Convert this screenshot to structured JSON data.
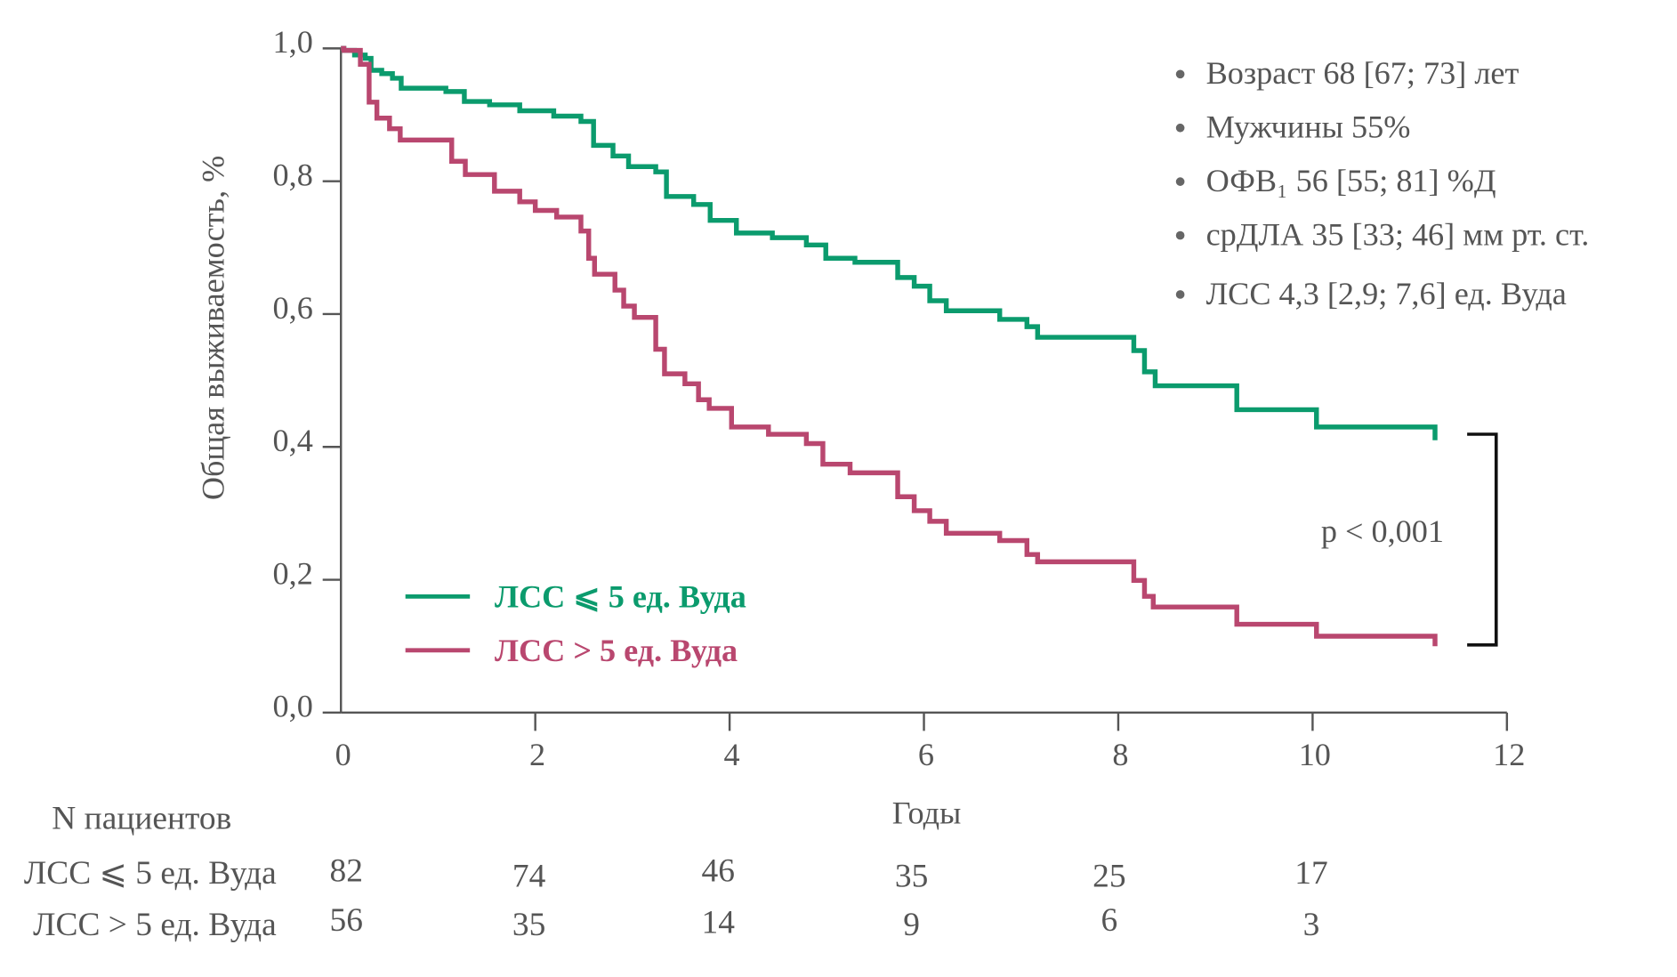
{
  "chart_data": {
    "type": "line",
    "subtype": "kaplan-meier",
    "ylabel": "Общая выживаемость, %",
    "xlabel": "Годы",
    "xlim": [
      0,
      12
    ],
    "ylim": [
      0,
      1.0
    ],
    "xticks": [
      0,
      2,
      4,
      6,
      8,
      10,
      12
    ],
    "yticks": [
      "0,0",
      "0,2",
      "0,4",
      "0,6",
      "0,8",
      "1,0"
    ],
    "ytick_values": [
      0,
      0.2,
      0.4,
      0.6,
      0.8,
      1.0
    ],
    "grid": false,
    "legend_position": "bottom-left",
    "colors": {
      "green": "#0b9b6d",
      "magenta": "#b9476f"
    },
    "series": [
      {
        "name": "ЛСС ⩽ 5 ед. Вуда",
        "color": "#0b9b6d",
        "steps": [
          [
            0,
            1.0
          ],
          [
            0.03,
            0.997
          ],
          [
            0.14,
            0.99
          ],
          [
            0.25,
            0.985
          ],
          [
            0.31,
            0.967
          ],
          [
            0.42,
            0.962
          ],
          [
            0.53,
            0.955
          ],
          [
            0.62,
            0.94
          ],
          [
            1.08,
            0.935
          ],
          [
            1.27,
            0.92
          ],
          [
            1.53,
            0.915
          ],
          [
            1.84,
            0.906
          ],
          [
            2.19,
            0.898
          ],
          [
            2.47,
            0.89
          ],
          [
            2.6,
            0.854
          ],
          [
            2.8,
            0.838
          ],
          [
            2.96,
            0.822
          ],
          [
            3.24,
            0.814
          ],
          [
            3.35,
            0.777
          ],
          [
            3.63,
            0.765
          ],
          [
            3.8,
            0.741
          ],
          [
            4.07,
            0.722
          ],
          [
            4.44,
            0.715
          ],
          [
            4.79,
            0.704
          ],
          [
            4.99,
            0.684
          ],
          [
            5.29,
            0.678
          ],
          [
            5.73,
            0.655
          ],
          [
            5.9,
            0.642
          ],
          [
            6.06,
            0.62
          ],
          [
            6.23,
            0.605
          ],
          [
            6.78,
            0.592
          ],
          [
            7.06,
            0.581
          ],
          [
            7.17,
            0.565
          ],
          [
            8.16,
            0.545
          ],
          [
            8.27,
            0.513
          ],
          [
            8.38,
            0.492
          ],
          [
            9.22,
            0.456
          ],
          [
            10.04,
            0.43
          ],
          [
            11.26,
            0.43
          ],
          [
            11.26,
            0.41
          ]
        ]
      },
      {
        "name": "ЛСС > 5 ед. Вуда",
        "color": "#b9476f",
        "steps": [
          [
            0,
            1.0
          ],
          [
            0.03,
            0.997
          ],
          [
            0.2,
            0.976
          ],
          [
            0.29,
            0.919
          ],
          [
            0.37,
            0.895
          ],
          [
            0.5,
            0.879
          ],
          [
            0.61,
            0.862
          ],
          [
            1.14,
            0.83
          ],
          [
            1.28,
            0.81
          ],
          [
            1.58,
            0.785
          ],
          [
            1.84,
            0.769
          ],
          [
            2.0,
            0.756
          ],
          [
            2.22,
            0.746
          ],
          [
            2.47,
            0.725
          ],
          [
            2.55,
            0.684
          ],
          [
            2.61,
            0.66
          ],
          [
            2.82,
            0.636
          ],
          [
            2.91,
            0.612
          ],
          [
            3.02,
            0.595
          ],
          [
            3.24,
            0.547
          ],
          [
            3.33,
            0.51
          ],
          [
            3.54,
            0.495
          ],
          [
            3.68,
            0.471
          ],
          [
            3.79,
            0.458
          ],
          [
            4.02,
            0.43
          ],
          [
            4.4,
            0.419
          ],
          [
            4.79,
            0.405
          ],
          [
            4.96,
            0.374
          ],
          [
            5.24,
            0.361
          ],
          [
            5.73,
            0.325
          ],
          [
            5.9,
            0.304
          ],
          [
            6.06,
            0.288
          ],
          [
            6.23,
            0.27
          ],
          [
            6.78,
            0.259
          ],
          [
            7.06,
            0.238
          ],
          [
            7.17,
            0.227
          ],
          [
            8.16,
            0.199
          ],
          [
            8.27,
            0.175
          ],
          [
            8.36,
            0.159
          ],
          [
            9.22,
            0.133
          ],
          [
            10.04,
            0.115
          ],
          [
            11.26,
            0.115
          ],
          [
            11.26,
            0.1
          ]
        ]
      }
    ],
    "annotations": {
      "p_value": "p < 0,001",
      "stats": [
        "Возраст 68 [67; 73] лет",
        "Мужчины 55%",
        "ОФВ₁ 56 [55; 81] %Д",
        "срДЛА 35 [33; 46] мм рт. ст.",
        "ЛСС 4,3 [2,9; 7,6] ед. Вуда"
      ]
    },
    "risk_table": {
      "title": "N пациентов",
      "rows": [
        {
          "label": "ЛСС ⩽ 5 ед. Вуда",
          "values": [
            "82",
            "74",
            "46",
            "35",
            "25",
            "17"
          ]
        },
        {
          "label": "ЛСС > 5 ед. Вуда",
          "values": [
            "56",
            "35",
            "14",
            "9",
            "6",
            "3"
          ]
        }
      ]
    }
  }
}
